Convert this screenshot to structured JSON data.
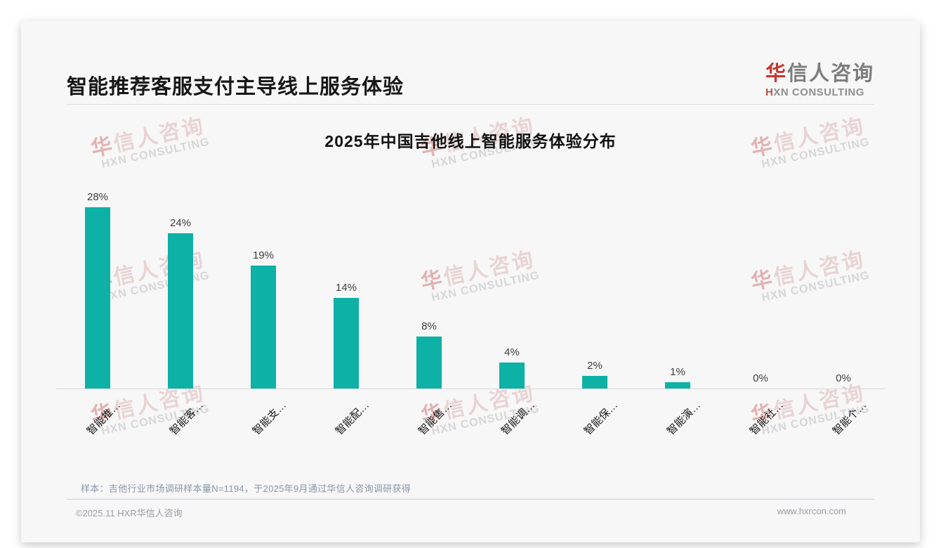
{
  "header": {
    "title": "智能推荐客服支付主导线上服务体验",
    "logo": {
      "cn_first": "华",
      "cn_rest": "信人咨询",
      "en_first": "H",
      "en_rest": "XN CONSULTING"
    }
  },
  "watermark": {
    "cn_first": "华",
    "cn_rest": "信人咨询",
    "en": "HXN CONSULTING"
  },
  "chart_data": {
    "type": "bar",
    "title": "2025年中国吉他线上智能服务体验分布",
    "categories": [
      "智能推…",
      "智能客…",
      "智能支…",
      "智能配…",
      "智能售…",
      "智能调…",
      "智能保…",
      "智能演…",
      "智能社…",
      "智能个…"
    ],
    "values": [
      28,
      24,
      19,
      14,
      8,
      4,
      2,
      1,
      0,
      0
    ],
    "value_labels": [
      "28%",
      "24%",
      "19%",
      "14%",
      "8%",
      "4%",
      "2%",
      "1%",
      "0%",
      "0%"
    ],
    "bar_color": "#0db1a6",
    "xlabel": "",
    "ylabel": "",
    "ylim": [
      0,
      30
    ],
    "grid": false,
    "legend": "none"
  },
  "footer": {
    "note": "样本：吉他行业市场调研样本量N=1194，于2025年9月通过华信人咨询调研获得",
    "copyright": "©2025.11 HXR华信人咨询",
    "website": "www.hxrcon.com"
  }
}
